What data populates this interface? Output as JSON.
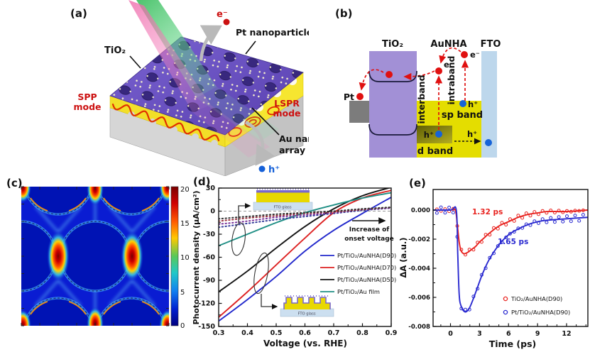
{
  "figure": {
    "background": "#ffffff",
    "panels": {
      "a": {
        "label": "(a)",
        "electron_label": "e⁻",
        "hole_label": "h⁺",
        "pt_nanoparticles_label": "Pt nanoparticles",
        "tio2_label": "TiO₂",
        "spp_line1": "SPP",
        "spp_line2": "mode",
        "lspr_line1": "LSPR",
        "lspr_line2": "mode",
        "au_nanohole_line1": "Au nanohole",
        "au_nanohole_line2": "array",
        "colors": {
          "tio2_surface": "#6a52c8",
          "au": "#f2e028",
          "substrate": "#d2d2d2",
          "spp_wave": "#e03000",
          "annotation_red": "#cc1111",
          "hole_blue": "#1560d8"
        }
      },
      "b": {
        "label": "(b)",
        "column_tio2": "TiO₂",
        "column_aunha": "AuNHA",
        "column_fto": "FTO",
        "pt_label": "Pt",
        "electron_mid": "e⁻",
        "electron_top": "e⁻",
        "hole_sp": "h⁺",
        "hole_d": "h⁺",
        "hole_fto": "h⁺",
        "interband_label": "interband",
        "intraband_label": "intraband",
        "sp_band_label": "sp band",
        "d_band_label": "d band",
        "colors": {
          "tio2": "#a290d6",
          "aunha": "#e4dd00",
          "fto": "#bdd7ec",
          "pt": "#7c7c7c",
          "d_band_dark": "#6f6f08",
          "electron": "#e01010",
          "hole": "#1663d8"
        }
      },
      "c": {
        "label": "(c)",
        "colorbar_ticks": [
          "20",
          "15",
          "10",
          "5",
          "0"
        ]
      },
      "d": {
        "label": "(d)",
        "onset_note_line1": "Increase of",
        "onset_note_line2": "onset voltage",
        "inset_caption_top": "FTO glass",
        "inset_caption_bottom": "FTO glass"
      },
      "e": {
        "label": "(e)",
        "tau_red": "1.32 ps",
        "tau_blue": "1.65 ps"
      }
    }
  },
  "chart_data": [
    {
      "panel": "d",
      "type": "line",
      "title": "",
      "xlabel": "Voltage (vs. RHE)",
      "ylabel": "Photocurrent density (μA/cm²)",
      "xlim": [
        0.3,
        0.9
      ],
      "ylim": [
        -150,
        36
      ],
      "x_ticks": [
        0.3,
        0.4,
        0.5,
        0.6,
        0.7,
        0.8,
        0.9
      ],
      "x_tick_labels": [
        "0.3",
        "0.4",
        "0.5",
        "0.6",
        "0.7",
        "0.8",
        "0.9"
      ],
      "y_ticks": [
        30,
        0,
        -30,
        -60,
        -90,
        -120,
        -150
      ],
      "y_tick_labels": [
        "30",
        "0",
        "-30",
        "-60",
        "-90",
        "-120",
        "-150"
      ],
      "grid": false,
      "zero_line": "dashed",
      "legend_position": "right-center",
      "x": [
        0.3,
        0.4,
        0.5,
        0.6,
        0.7,
        0.8,
        0.9
      ],
      "series": [
        {
          "name": "Pt/TiO₂/AuNHA(D90)",
          "color": "#2228cc",
          "style": "solid",
          "in_legend": true,
          "values": [
            -143,
            -115,
            -85,
            -52,
            -25,
            -3,
            18
          ]
        },
        {
          "name": "Pt/TiO₂/AuNHA(D70)",
          "color": "#dd2222",
          "style": "solid",
          "in_legend": true,
          "values": [
            -138,
            -105,
            -70,
            -35,
            -2,
            17,
            27
          ]
        },
        {
          "name": "Pt/TiO₂/AuNHA(D50)",
          "color": "#141414",
          "style": "solid",
          "in_legend": true,
          "values": [
            -105,
            -78,
            -48,
            -20,
            3,
            20,
            31
          ]
        },
        {
          "name": "Pt/TiO₂/Au film",
          "color": "#1f8f85",
          "style": "solid",
          "in_legend": true,
          "values": [
            -45,
            -30,
            -15,
            -2,
            8,
            17,
            24
          ]
        },
        {
          "name": "dark current 1",
          "color": "#333a99",
          "style": "dotted",
          "in_legend": false,
          "values": [
            -21,
            -16,
            -11,
            -7,
            -3,
            1,
            4
          ]
        },
        {
          "name": "dark current 2",
          "color": "#7a3399",
          "style": "dotted",
          "in_legend": false,
          "values": [
            -17,
            -13,
            -8,
            -5,
            -2,
            2,
            4
          ]
        },
        {
          "name": "dark current 3",
          "color": "#99333f",
          "style": "dotted",
          "in_legend": false,
          "values": [
            -13,
            -9,
            -6,
            -3,
            -1,
            2,
            5
          ]
        },
        {
          "name": "dark current 4",
          "color": "#333333",
          "style": "dotted",
          "in_legend": false,
          "values": [
            -10,
            -7,
            -4,
            -2,
            0,
            3,
            5
          ]
        }
      ],
      "annotations": [
        "Increase of onset voltage"
      ],
      "insets": [
        "Pt/TiO₂/Au flat film on FTO glass",
        "Pt/TiO₂/Au nanohole array on FTO glass"
      ]
    },
    {
      "panel": "e",
      "type": "line+scatter",
      "title": "",
      "xlabel": "Time (ps)",
      "ylabel": "ΔA (a.u.)",
      "xlim": [
        -1.8,
        14.2
      ],
      "ylim": [
        -0.008,
        0.0014
      ],
      "x_ticks": [
        0,
        3,
        6,
        9,
        12
      ],
      "x_tick_labels": [
        "0",
        "3",
        "6",
        "9",
        "12"
      ],
      "y_ticks": [
        0,
        -0.002,
        -0.004,
        -0.006,
        -0.008
      ],
      "y_tick_labels": [
        "0.000",
        "-0.002",
        "-0.004",
        "-0.006",
        "-0.008"
      ],
      "legend_position": "bottom-right",
      "series": [
        {
          "name": "TiO₂/AuNHA(D90)",
          "color": "#e8231f",
          "tau_label": "1.32 ps",
          "points": [
            [
              -1.8,
              0
            ],
            [
              0,
              0
            ],
            [
              0.5,
              0
            ],
            [
              0.7,
              -0.001
            ],
            [
              0.9,
              -0.0022
            ],
            [
              1.1,
              -0.0028
            ],
            [
              1.4,
              -0.003
            ],
            [
              1.8,
              -0.0029
            ],
            [
              2.2,
              -0.0027
            ],
            [
              2.6,
              -0.0025
            ],
            [
              3,
              -0.0022
            ],
            [
              3.5,
              -0.0019
            ],
            [
              4,
              -0.0016
            ],
            [
              5,
              -0.0011
            ],
            [
              6,
              -0.0008
            ],
            [
              7,
              -0.0005
            ],
            [
              8,
              -0.0003
            ],
            [
              9,
              -0.0002
            ],
            [
              10,
              -0.0001
            ],
            [
              12,
              -0.0001
            ],
            [
              14.2,
              0
            ]
          ]
        },
        {
          "name": "Pt/TiO₂/AuNHA(D90)",
          "color": "#2a2ad0",
          "tau_label": "1.65 ps",
          "points": [
            [
              -1.8,
              0
            ],
            [
              0,
              0
            ],
            [
              0.6,
              0
            ],
            [
              0.75,
              -0.003
            ],
            [
              0.9,
              -0.0058
            ],
            [
              1.1,
              -0.0066
            ],
            [
              1.5,
              -0.007
            ],
            [
              1.9,
              -0.0068
            ],
            [
              2.3,
              -0.0062
            ],
            [
              2.8,
              -0.0053
            ],
            [
              3.3,
              -0.0044
            ],
            [
              4,
              -0.0034
            ],
            [
              5,
              -0.0024
            ],
            [
              6,
              -0.0017
            ],
            [
              7,
              -0.0013
            ],
            [
              8,
              -0.001
            ],
            [
              9,
              -0.0008
            ],
            [
              10,
              -0.0007
            ],
            [
              12,
              -0.0006
            ],
            [
              14.2,
              -0.0005
            ]
          ]
        }
      ]
    },
    {
      "panel": "c",
      "type": "heatmap",
      "title": "",
      "description": "Simulated near-field intensity enhancement map of the Au nanohole array (jet colormap); hot spots localized in gaps between adjacent nanoholes",
      "pattern": "hexagonal array of nanoholes",
      "colorbar": {
        "min": 0,
        "max": 20,
        "ticks": [
          0,
          5,
          10,
          15,
          20
        ]
      },
      "colormap": "jet",
      "hotspot_value": 20,
      "background_value": 2
    }
  ]
}
